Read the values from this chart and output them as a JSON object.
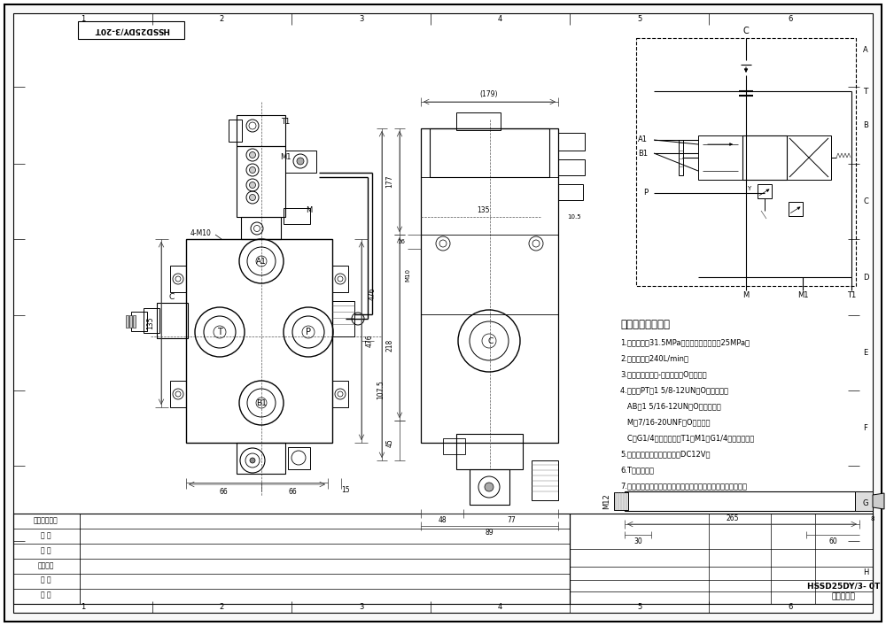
{
  "bg_color": "#ffffff",
  "line_color": "#000000",
  "grid_cols": [
    "1",
    "2",
    "3",
    "4",
    "5",
    "6"
  ],
  "grid_rows": [
    "A",
    "B",
    "C",
    "D",
    "E",
    "F",
    "G",
    "H"
  ],
  "title_box_text": "HSSD25DY/3-20T",
  "bottom_right_text1": "HSSD25DY/3- 0T",
  "bottom_right_text2": "二联多路阀",
  "tech_requirements": [
    "技术要求和参数：",
    "1.公称压力：31.5MPa；溢流阀调定压力：25MPa；",
    "2.公称流量：240L/min；",
    "3.控制方式：手动-电液控制，O型阀杆；",
    "4.油口：PT为1 5/8-12UN，O型圈管封；",
    "   AB为1 5/16-12UN，O型圈管封；",
    "   M为7/16-20UNF，O圆管封；",
    "   C为G1/4，平面密封；T1、M1为G1/4，平面密封；",
    "5.电磁线圈：三插线圈，电压DC12V；",
    "6.T口接油桶；",
    "7.阀体表面磷化处理，安全阀及螺塞锻件，支架后显为铝本色。"
  ],
  "left_title_labels": [
    "普通用件变动",
    "审 图",
    "校 核",
    "图纸图号",
    "签 字",
    "日 期"
  ]
}
